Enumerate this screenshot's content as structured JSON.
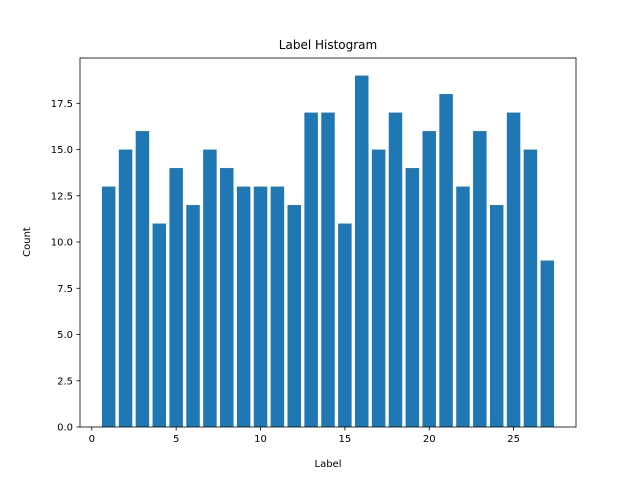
{
  "chart_data": {
    "type": "bar",
    "title": "Label Histogram",
    "xlabel": "Label",
    "ylabel": "Count",
    "x": [
      1,
      2,
      3,
      4,
      5,
      6,
      7,
      8,
      9,
      10,
      11,
      12,
      13,
      14,
      15,
      16,
      17,
      18,
      19,
      20,
      21,
      22,
      23,
      24,
      25,
      26,
      27
    ],
    "values": [
      13,
      15,
      16,
      11,
      14,
      12,
      15,
      14,
      13,
      13,
      13,
      12,
      17,
      17,
      11,
      19,
      15,
      17,
      14,
      16,
      18,
      13,
      16,
      12,
      17,
      15,
      9
    ],
    "xlim": [
      -0.7,
      28.7
    ],
    "ylim": [
      0,
      19.95
    ],
    "xticks": [
      0,
      5,
      10,
      15,
      20,
      25
    ],
    "xtick_labels": [
      "0",
      "5",
      "10",
      "15",
      "20",
      "25"
    ],
    "yticks": [
      0,
      2.5,
      5,
      7.5,
      10,
      12.5,
      15,
      17.5
    ],
    "ytick_labels": [
      "0.0",
      "2.5",
      "5.0",
      "7.5",
      "10.0",
      "12.5",
      "15.0",
      "17.5"
    ],
    "bar_color": "#1f77b4",
    "grid": false,
    "legend": "none"
  }
}
